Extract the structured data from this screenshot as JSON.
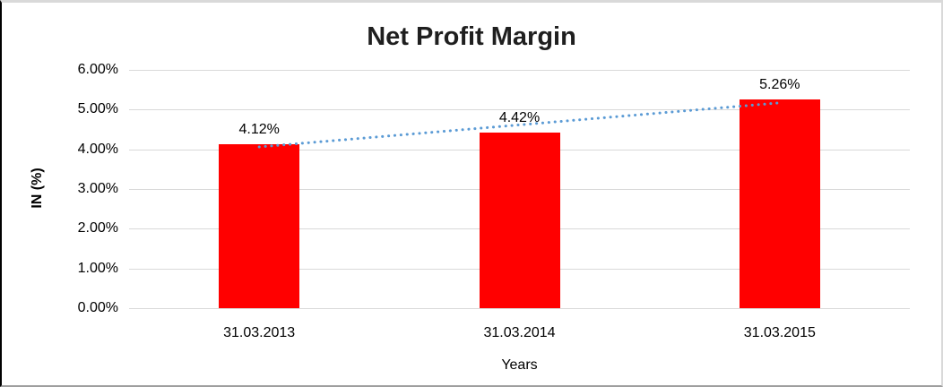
{
  "chart_data": {
    "type": "bar",
    "title": "Net Profit Margin",
    "categories": [
      "31.03.2013",
      "31.03.2014",
      "31.03.2015"
    ],
    "values": [
      4.12,
      4.42,
      5.26
    ],
    "data_labels": [
      "4.12%",
      "4.42%",
      "5.26%"
    ],
    "xlabel": "Years",
    "ylabel": "IN (%)",
    "ylim": [
      0,
      6
    ],
    "y_tick_values": [
      0,
      1,
      2,
      3,
      4,
      5,
      6
    ],
    "y_tick_labels": [
      "0.00%",
      "1.00%",
      "2.00%",
      "3.00%",
      "4.00%",
      "5.00%",
      "6.00%"
    ],
    "grid": true,
    "legend": "none",
    "colors": {
      "bar": "#FF0000",
      "trendline": "#5B9BD5",
      "gridline": "#D9D9D9",
      "text": "#000000",
      "title": "#1F1F1F"
    },
    "trendline": {
      "type": "linear",
      "style": "dotted",
      "start_value": 4.06,
      "end_value": 5.17
    }
  }
}
